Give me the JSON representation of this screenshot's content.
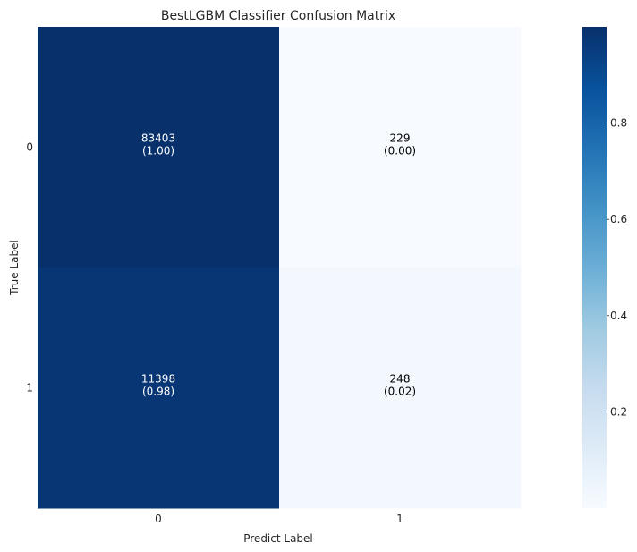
{
  "chart_data": {
    "type": "heatmap",
    "title": "BestLGBM Classifier Confusion Matrix",
    "xlabel": "Predict Label",
    "ylabel": "True Label",
    "x_categories": [
      "0",
      "1"
    ],
    "y_categories": [
      "0",
      "1"
    ],
    "counts": [
      [
        83403,
        229
      ],
      [
        11398,
        248
      ]
    ],
    "normalized": [
      [
        1.0,
        0.0
      ],
      [
        0.98,
        0.02
      ]
    ],
    "cell_labels": [
      [
        "83403\n(1.00)",
        "229\n(0.00)"
      ],
      [
        "11398\n(0.98)",
        "248\n(0.02)"
      ]
    ],
    "colorbar": {
      "colormap": "Blues",
      "range": [
        0,
        1
      ],
      "ticks": [
        0.2,
        0.4,
        0.6,
        0.8
      ],
      "tick_labels": [
        "0.2",
        "0.4",
        "0.6",
        "0.8"
      ]
    },
    "grid": false
  }
}
